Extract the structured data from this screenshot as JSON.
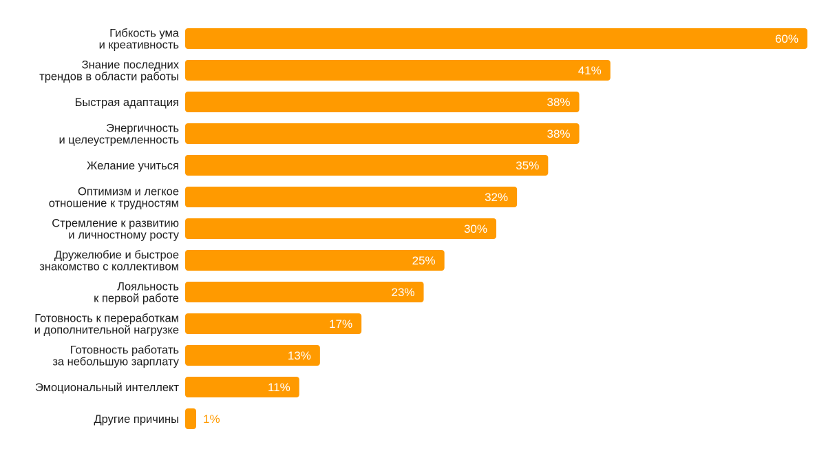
{
  "chart_data": {
    "type": "bar",
    "orientation": "horizontal",
    "title": "",
    "xlabel": "",
    "ylabel": "",
    "grid": false,
    "legend": "none",
    "xlim": [
      0,
      60
    ],
    "bar_color": "#ff9a00",
    "label_color_inside": "#ffffff",
    "label_color_outside": "#ff9a00",
    "text_color": "#1c1c1c",
    "categories": [
      [
        "Гибкость ума",
        "и креативность"
      ],
      [
        "Знание последних",
        "трендов в области работы"
      ],
      [
        "Быстрая адаптация"
      ],
      [
        "Энергичность",
        "и целеустремленность"
      ],
      [
        "Желание учиться"
      ],
      [
        "Оптимизм и легкое",
        "отношение к трудностям"
      ],
      [
        "Стремление к развитию",
        "и личностному росту"
      ],
      [
        "Дружелюбие и быстрое",
        "знакомство с коллективом"
      ],
      [
        "Лояльность",
        "к первой работе"
      ],
      [
        "Готовность к переработкам",
        "и дополнительной нагрузке"
      ],
      [
        "Готовность работать",
        "за небольшую зарплату"
      ],
      [
        "Эмоциональный интеллект"
      ],
      [
        "Другие причины"
      ]
    ],
    "values": [
      60,
      41,
      38,
      38,
      35,
      32,
      30,
      25,
      23,
      17,
      13,
      11,
      1
    ],
    "value_labels": [
      "60%",
      "41%",
      "38%",
      "38%",
      "35%",
      "32%",
      "30%",
      "25%",
      "23%",
      "17%",
      "13%",
      "11%",
      "1%"
    ]
  }
}
